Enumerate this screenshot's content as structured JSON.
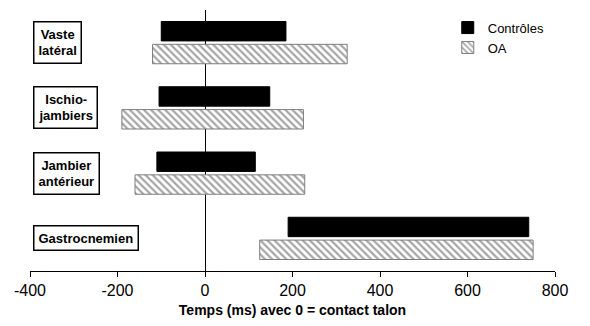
{
  "chart_data": {
    "type": "bar",
    "orientation": "horizontal",
    "xlabel": "Temps (ms) avec 0 = contact talon",
    "categories": [
      "Vaste\nlatéral",
      "Ischio-\njambiers",
      "Jambier\nantérieur",
      "Gastrocnemien"
    ],
    "series": [
      {
        "name": "Contrôles",
        "color": "#000000",
        "marker": "solid",
        "values": [
          [
            -100,
            185
          ],
          [
            -105,
            148
          ],
          [
            -110,
            115
          ],
          [
            190,
            740
          ]
        ]
      },
      {
        "name": "OA",
        "color": "#a6a6a6",
        "marker": "hatched",
        "values": [
          [
            -120,
            325
          ],
          [
            -190,
            225
          ],
          [
            -160,
            228
          ],
          [
            125,
            750
          ]
        ]
      }
    ],
    "xlim": [
      -400,
      800
    ],
    "xticks": [
      -400,
      -200,
      0,
      200,
      400,
      600,
      800
    ],
    "grid": false,
    "legend": "top-right",
    "tick_labels": "x"
  }
}
